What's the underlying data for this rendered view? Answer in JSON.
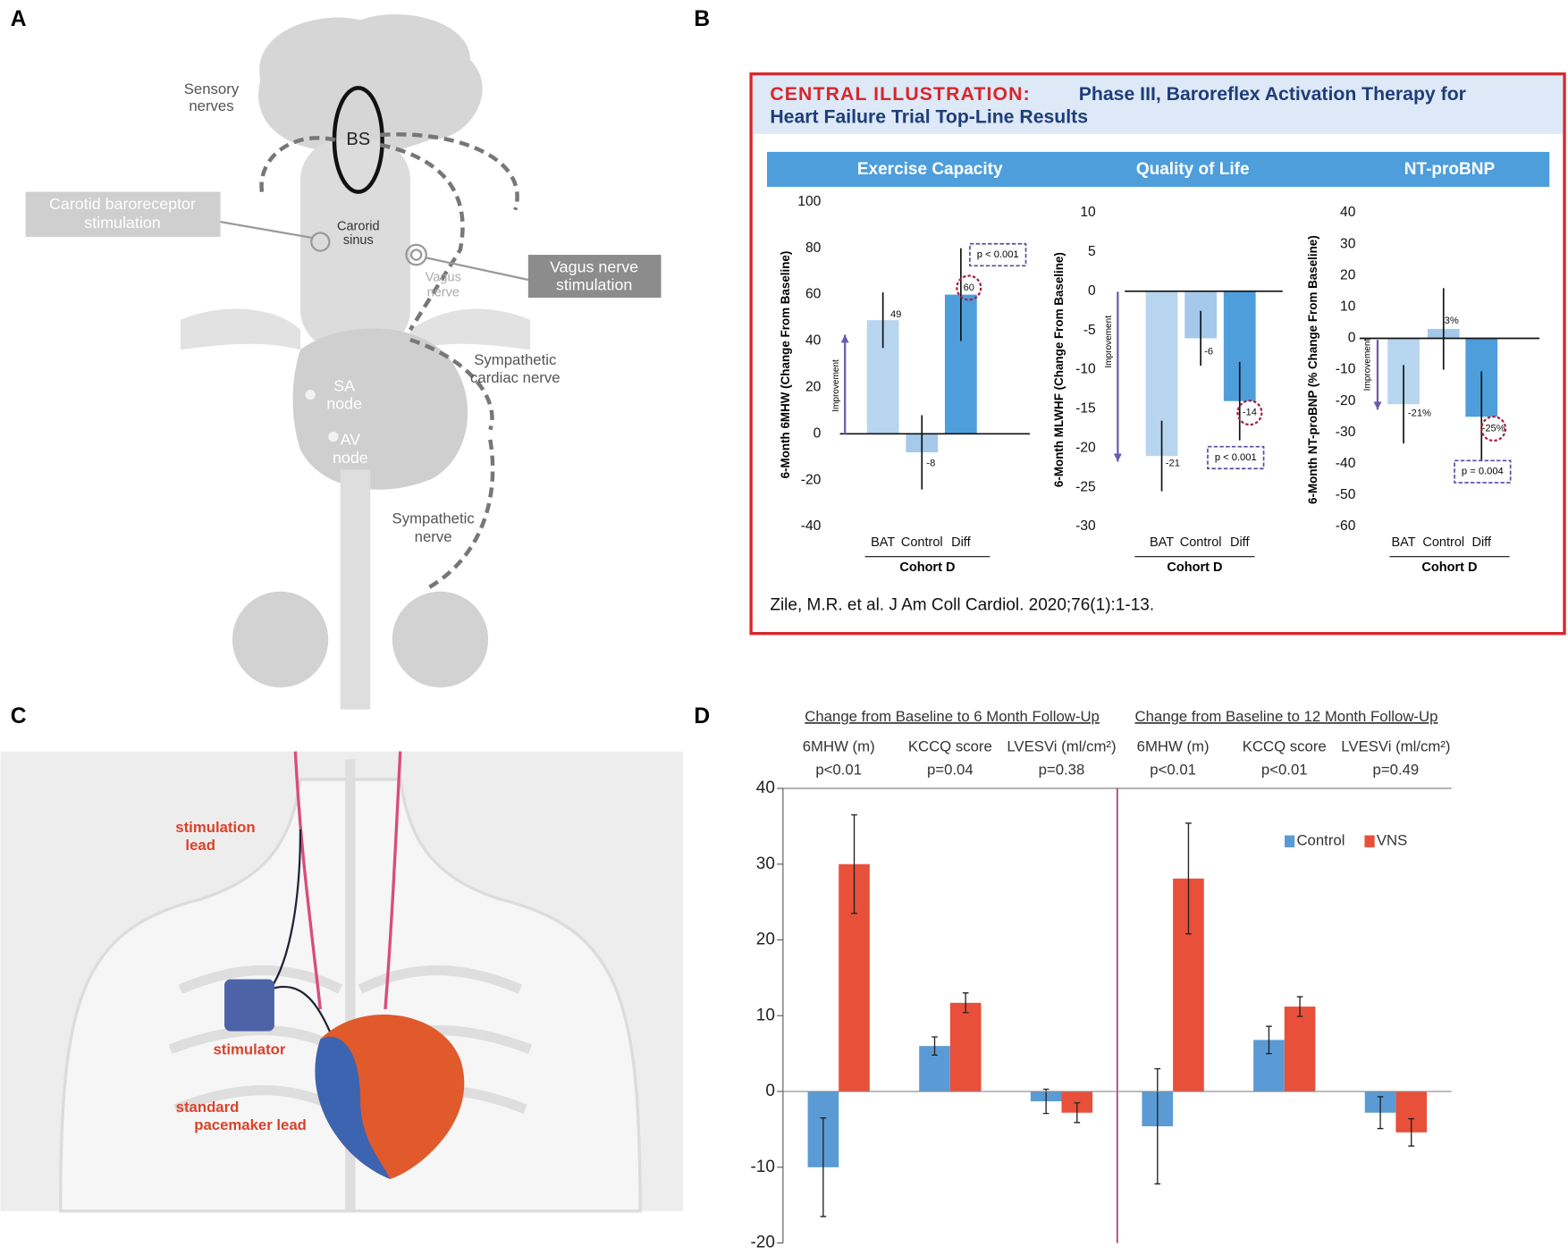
{
  "panel_labels": [
    "A",
    "B",
    "C",
    "D"
  ],
  "figure_a": {
    "sensory_nerves": [
      "Sensory",
      "nerves"
    ],
    "carotid_stimulation": [
      "Carotid baroreceptor",
      "stimulation"
    ],
    "brainstem": "BS",
    "carotid_sinus": [
      "Carorid",
      "sinus"
    ],
    "vagus_nerve": [
      "Vagus",
      "nerve"
    ],
    "vagus_stimulation": [
      "Vagus nerve",
      "stimulation"
    ],
    "sympathetic_cardiac_nerve": [
      "Sympathetic",
      "cardiac nerve"
    ],
    "sa_node": [
      "SA",
      "node"
    ],
    "av_node": [
      "AV",
      "node"
    ],
    "sympathetic_nerve": [
      "Sympathetic",
      "nerve"
    ]
  },
  "figure_b": {
    "label": "CENTRAL ILLUSTRATION:",
    "title": [
      "Phase III, Baroreflex Activation Therapy for",
      "Heart Failure Trial Top-Line Results"
    ],
    "citation": "Zile, M.R. et al. J Am Coll Cardiol. 2020;76(1):1-13."
  },
  "figure_c": {
    "stimulation_lead": [
      "stimulation",
      "lead"
    ],
    "stimulator": "stimulator",
    "pacemaker_lead": [
      "standard",
      "pacemaker lead"
    ]
  },
  "chart_data": [
    {
      "type": "bar",
      "title": "Exercise Capacity",
      "ylabel": "6-Month 6MHW (Change From Baseline)",
      "xlabel": "Cohort D",
      "categories": [
        "BAT",
        "Control",
        "Diff"
      ],
      "values": [
        49,
        -8,
        60
      ],
      "errors": [
        12,
        16,
        20
      ],
      "colors": [
        "#b8d5ef",
        "#a4c9eb",
        "#4e9edb"
      ],
      "ylim": [
        -40,
        100
      ],
      "yticks": [
        -40,
        -20,
        0,
        20,
        40,
        60,
        80,
        100
      ],
      "annotations": {
        "improvement": "Improvement",
        "p_value": "p < 0.001"
      }
    },
    {
      "type": "bar",
      "title": "Quality of Life",
      "ylabel": "6-Month MLWHF (Change From Baseline)",
      "xlabel": "Cohort D",
      "categories": [
        "BAT",
        "Control",
        "Diff"
      ],
      "values": [
        -21,
        -6,
        -14
      ],
      "errors": [
        4.5,
        3.5,
        5
      ],
      "colors": [
        "#b8d5ef",
        "#a4c9eb",
        "#4e9edb"
      ],
      "ylim": [
        -30,
        10
      ],
      "yticks": [
        -30,
        -25,
        -20,
        -15,
        -10,
        -5,
        0,
        5,
        10
      ],
      "annotations": {
        "improvement": "Improvement",
        "p_value": "p < 0.001"
      }
    },
    {
      "type": "bar",
      "title": "NT-proBNP",
      "ylabel": "6-Month NT-proBNP (% Change From Baseline)",
      "xlabel": "Cohort D",
      "categories": [
        "BAT",
        "Control",
        "Diff"
      ],
      "values": [
        -21,
        3,
        -25
      ],
      "value_labels": [
        "-21%",
        "3%",
        "-25%"
      ],
      "errors": [
        12.5,
        13,
        14.5
      ],
      "colors": [
        "#b8d5ef",
        "#a4c9eb",
        "#4e9edb"
      ],
      "ylim": [
        -60,
        40
      ],
      "yticks": [
        -60,
        -50,
        -40,
        -30,
        -20,
        -10,
        0,
        10,
        20,
        30,
        40
      ],
      "annotations": {
        "improvement": "Improvement",
        "p_value": "p = 0.004"
      }
    },
    {
      "type": "grouped_bar",
      "span_titles": [
        "Change from Baseline to 6 Month Follow-Up",
        "Change from Baseline to 12 Month Follow-Up"
      ],
      "categories": [
        "6MHW (m)",
        "KCCQ score",
        "LVESVi (ml/cm²)",
        "6MHW (m)",
        "KCCQ score",
        "LVESVi (ml/cm²)"
      ],
      "category_subtitles": [
        "p<0.01",
        "p=0.04",
        "p=0.38",
        "p<0.01",
        "p<0.01",
        "p=0.49"
      ],
      "series": [
        {
          "name": "Control",
          "color": "#5b9bd5",
          "values": [
            -10,
            6,
            -1.3,
            -4.6,
            6.8,
            -2.8
          ],
          "errors": [
            6.5,
            1.2,
            1.6,
            7.6,
            1.8,
            2.1
          ]
        },
        {
          "name": "VNS",
          "color": "#e8503a",
          "values": [
            30,
            11.7,
            -2.8,
            28.1,
            11.2,
            -5.4
          ],
          "errors": [
            6.5,
            1.3,
            1.3,
            7.3,
            1.3,
            1.8
          ]
        }
      ],
      "ylim": [
        -20,
        40
      ],
      "yticks": [
        -20,
        -10,
        0,
        10,
        20,
        30,
        40
      ],
      "legend": "upper right"
    }
  ]
}
